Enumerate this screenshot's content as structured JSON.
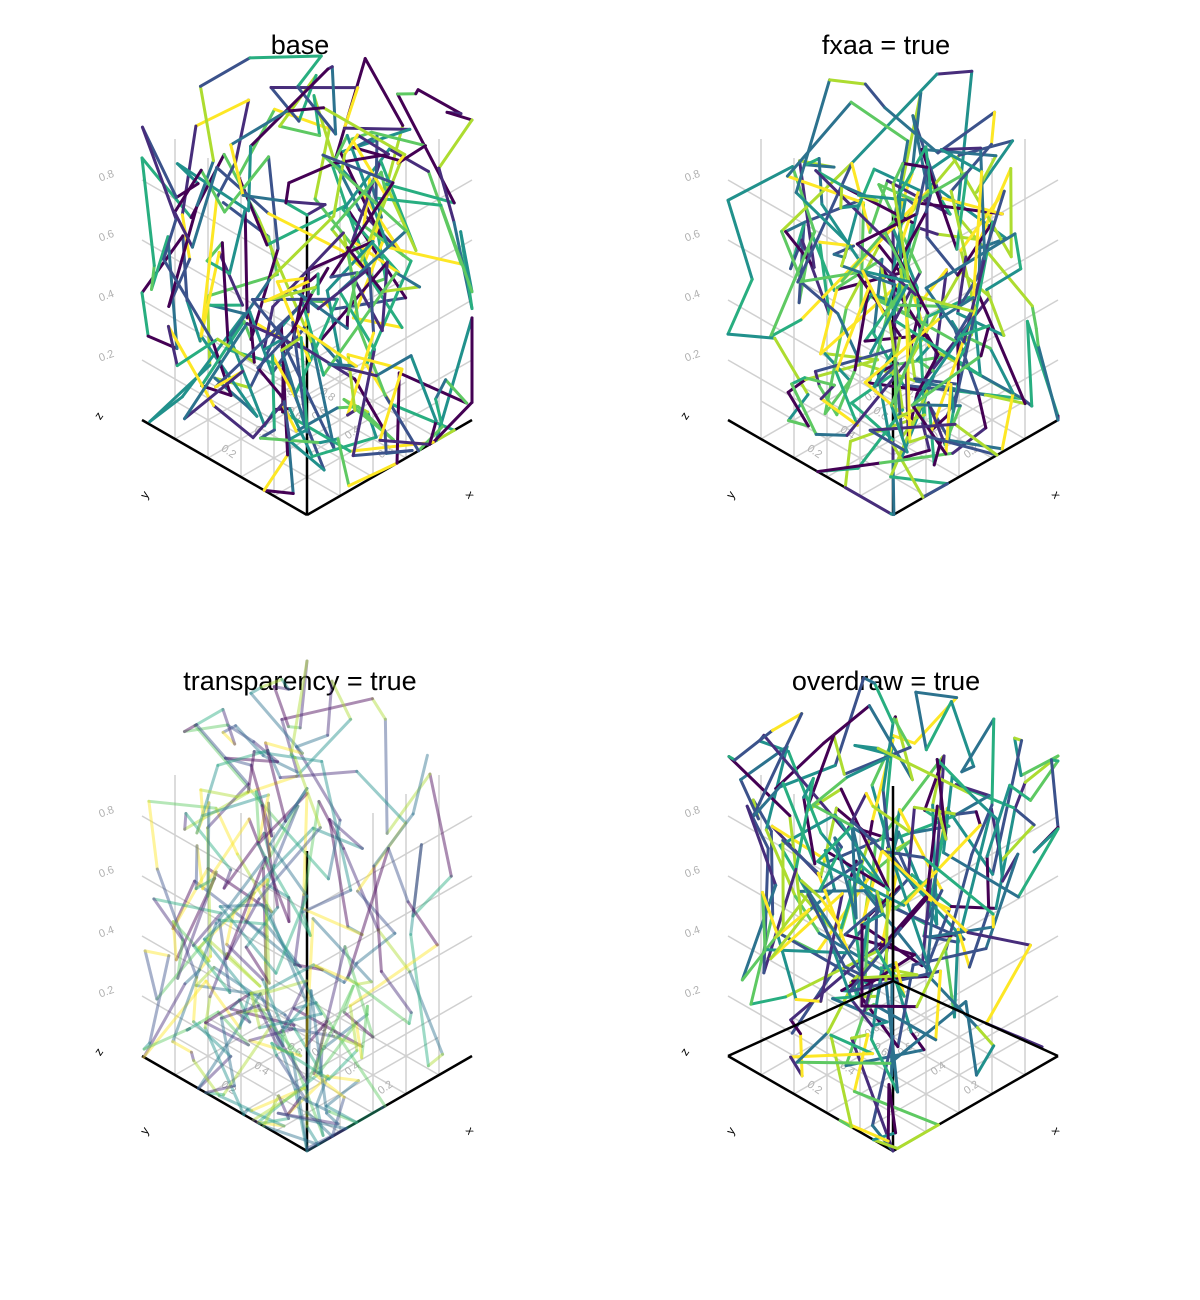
{
  "chart_data": [
    {
      "type": "line",
      "title": "base",
      "options": {
        "fxaa": false,
        "transparency": false,
        "overdraw": false
      },
      "axes": {
        "xlabel": "x",
        "ylabel": "y",
        "zlabel": "z",
        "ticks": [
          "0.2",
          "0.4",
          "0.6",
          "0.8"
        ],
        "xlim": [
          0,
          1
        ],
        "ylim": [
          0,
          1
        ],
        "zlim": [
          0,
          1
        ]
      },
      "line_alpha": 1.0,
      "colormap": "viridis"
    },
    {
      "type": "line",
      "title": "fxaa = true",
      "options": {
        "fxaa": true,
        "transparency": false,
        "overdraw": false
      },
      "axes": {
        "xlabel": "x",
        "ylabel": "y",
        "zlabel": "z",
        "ticks": [
          "0.2",
          "0.4",
          "0.6",
          "0.8"
        ],
        "xlim": [
          0,
          1
        ],
        "ylim": [
          0,
          1
        ],
        "zlim": [
          0,
          1
        ]
      },
      "line_alpha": 1.0,
      "colormap": "viridis"
    },
    {
      "type": "line",
      "title": "transparency = true",
      "options": {
        "fxaa": false,
        "transparency": true,
        "overdraw": false
      },
      "axes": {
        "xlabel": "x",
        "ylabel": "y",
        "zlabel": "z",
        "ticks": [
          "0.2",
          "0.4",
          "0.6",
          "0.8"
        ],
        "xlim": [
          0,
          1
        ],
        "ylim": [
          0,
          1
        ],
        "zlim": [
          0,
          1
        ]
      },
      "line_alpha": 0.45,
      "colormap": "viridis"
    },
    {
      "type": "line",
      "title": "overdraw = true",
      "options": {
        "fxaa": false,
        "transparency": false,
        "overdraw": true
      },
      "axes": {
        "xlabel": "x",
        "ylabel": "y",
        "zlabel": "z",
        "ticks": [
          "0.2",
          "0.4",
          "0.6",
          "0.8"
        ],
        "xlim": [
          0,
          1
        ],
        "ylim": [
          0,
          1
        ],
        "zlim": [
          0,
          1
        ]
      },
      "line_alpha": 1.0,
      "colormap": "viridis"
    }
  ],
  "colors": {
    "viridis": [
      "#440154",
      "#472d7b",
      "#3b528b",
      "#2c728e",
      "#21918c",
      "#28ae80",
      "#5ec962",
      "#addc30",
      "#fde725"
    ],
    "axis_line": "#000000",
    "grid": "#d0d0d0",
    "tick_text": "#b0b0b0"
  }
}
